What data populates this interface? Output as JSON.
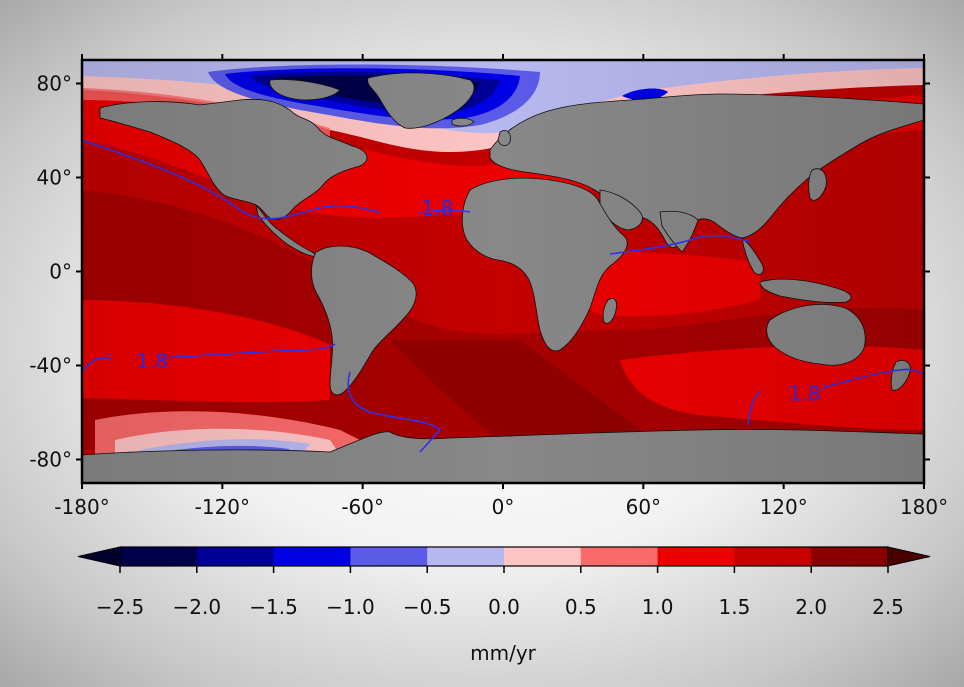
{
  "map": {
    "projection": "equirectangular",
    "x_ticks": [
      "-180°",
      "-120°",
      "-60°",
      "0°",
      "60°",
      "120°",
      "180°"
    ],
    "y_ticks": [
      "80°",
      "40°",
      "0°",
      "-40°",
      "-80°"
    ],
    "contour_value": "1.8",
    "contour_labels": [
      {
        "text": "1.8",
        "lon": -28,
        "lat": 27
      },
      {
        "text": "1.8",
        "lon": -150,
        "lat": -38
      },
      {
        "text": "1.8",
        "lon": 129,
        "lat": -52
      }
    ],
    "colors": {
      "land": "#888888",
      "ocean_base": "#c40000",
      "contour": "#3333ee"
    }
  },
  "colorbar": {
    "unit": "mm/yr",
    "ticks": [
      "−2.5",
      "−2.0",
      "−1.5",
      "−1.0",
      "−0.5",
      "0.0",
      "0.5",
      "1.0",
      "1.5",
      "2.0",
      "2.5"
    ],
    "colors": [
      "#00004a",
      "#000097",
      "#0000e6",
      "#5b5be8",
      "#b8b8f0",
      "#ffc4c4",
      "#fa6a6a",
      "#ee0000",
      "#c40000",
      "#8a0000"
    ],
    "under_color": "#00002a",
    "over_color": "#4a0000",
    "extend": "both"
  }
}
